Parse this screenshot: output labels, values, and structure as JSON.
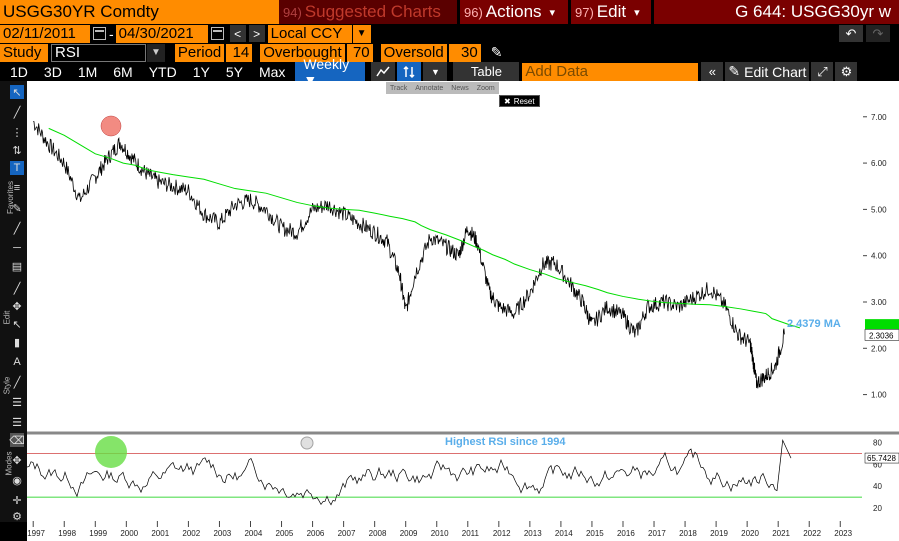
{
  "header": {
    "ticker": "USGG30YR Comdty",
    "suggested_num": "94)",
    "suggested_label": "Suggested Charts",
    "actions_num": "96)",
    "actions_label": "Actions",
    "edit_num": "97)",
    "edit_label": "Edit",
    "page_title": "G 644: USGG30yr w"
  },
  "dates": {
    "start": "02/11/2011",
    "separator": "-",
    "end": "04/30/2021",
    "currency": "Local CCY"
  },
  "study": {
    "label": "Study",
    "value": "RSI",
    "period_label": "Period",
    "period_value": "14",
    "overbought_label": "Overbought",
    "overbought_value": "70",
    "oversold_label": "Oversold",
    "oversold_value": "30"
  },
  "toolbar": {
    "ranges": [
      "1D",
      "3D",
      "1M",
      "6M",
      "YTD",
      "1Y",
      "5Y",
      "Max"
    ],
    "frequency": "Weekly ▼",
    "table_label": "Table",
    "add_data_placeholder": "Add Data",
    "edit_chart_label": "Edit Chart"
  },
  "floating_bar": {
    "items": [
      "Track",
      "Annotate",
      "News",
      "Zoom"
    ],
    "reset": "Reset"
  },
  "left_toolbar": {
    "sections": [
      "Favorites",
      "Edit",
      "Style",
      "Modes"
    ]
  },
  "colors": {
    "accent": "#ff8c00",
    "menu_red": "#7a0000",
    "active_tab": "#1565c0",
    "ma_line": "#00dd00",
    "price_line": "#000000",
    "ma_label": "#5aaeea",
    "overbought_line": "#d04040",
    "oversold_line": "#00cc00"
  },
  "chart_data": [
    {
      "type": "line",
      "title": "",
      "ylim": [
        0.3,
        7.6
      ],
      "y_ticks": [
        "7.00",
        "6.00",
        "5.00",
        "4.00",
        "3.00",
        "2.00",
        "1.00"
      ],
      "last_price_label": "2.3036",
      "ma_label": "2.4379 MA",
      "x": [
        1997,
        1997.5,
        1998,
        1998.5,
        1999,
        1999.4,
        1999.8,
        2000.2,
        2000.6,
        2001,
        2001.5,
        2002,
        2002.5,
        2003,
        2003.5,
        2004,
        2004.5,
        2005,
        2005.5,
        2006,
        2006.5,
        2007,
        2007.5,
        2008,
        2008.4,
        2008.8,
        2009,
        2009.3,
        2009.8,
        2010.3,
        2010.7,
        2011,
        2011.3,
        2011.7,
        2012,
        2012.5,
        2013,
        2013.4,
        2013.8,
        2014.3,
        2014.7,
        2015,
        2015.5,
        2016,
        2016.4,
        2016.8,
        2017.3,
        2017.8,
        2018.3,
        2018.8,
        2019.3,
        2019.7,
        2020.1,
        2020.2,
        2020.3,
        2020.6,
        2020.9,
        2021.2
      ],
      "series": [
        {
          "values": [
            6.9,
            6.4,
            6.0,
            5.2,
            5.7,
            6.1,
            6.45,
            6.1,
            5.8,
            5.6,
            5.5,
            5.4,
            4.9,
            4.7,
            5.1,
            5.2,
            5.0,
            4.6,
            4.5,
            5.0,
            5.1,
            4.9,
            4.7,
            4.5,
            4.3,
            3.6,
            2.8,
            3.6,
            4.4,
            4.2,
            4.0,
            4.6,
            4.3,
            3.2,
            2.9,
            2.75,
            3.2,
            3.8,
            3.85,
            3.4,
            3.0,
            2.5,
            2.9,
            2.7,
            2.3,
            2.9,
            3.0,
            2.9,
            3.1,
            3.3,
            2.9,
            2.3,
            2.1,
            1.7,
            1.25,
            1.4,
            1.6,
            2.3
          ]
        },
        {
          "name": "MA",
          "values": [
            6.75,
            6.6,
            6.4,
            6.2,
            6.1,
            6.0,
            5.95,
            5.85,
            5.8,
            5.75,
            5.7,
            5.65,
            5.55,
            5.45,
            5.4,
            5.35,
            5.25,
            5.15,
            5.08,
            5.03,
            5.0,
            4.98,
            4.92,
            4.85,
            4.8,
            4.73,
            4.65,
            4.56,
            4.45,
            4.32,
            4.2,
            4.12,
            4.02,
            3.92,
            3.82,
            3.7,
            3.6,
            3.5,
            3.43,
            3.35,
            3.27,
            3.2,
            3.12,
            3.06,
            3.02,
            2.99,
            2.97,
            2.95,
            2.94,
            2.9,
            2.85,
            2.8,
            2.75,
            2.7,
            2.64,
            2.57,
            2.5,
            2.44
          ]
        }
      ]
    },
    {
      "type": "line",
      "title": "RSI",
      "ylim": [
        10,
        85
      ],
      "y_ticks": [
        "80",
        "60",
        "40",
        "20"
      ],
      "last_value_label": "65.7428",
      "annotation": "Highest RSI since 1994",
      "overbought": 70,
      "oversold": 30,
      "x_ticks": [
        "1997",
        "1998",
        "1999",
        "2000",
        "2001",
        "2002",
        "2003",
        "2004",
        "2005",
        "2006",
        "2007",
        "2008",
        "2009",
        "2010",
        "2011",
        "2012",
        "2013",
        "2014",
        "2015",
        "2016",
        "2017",
        "2018",
        "2019",
        "2020",
        "2021",
        "2022",
        "2023"
      ]
    }
  ]
}
